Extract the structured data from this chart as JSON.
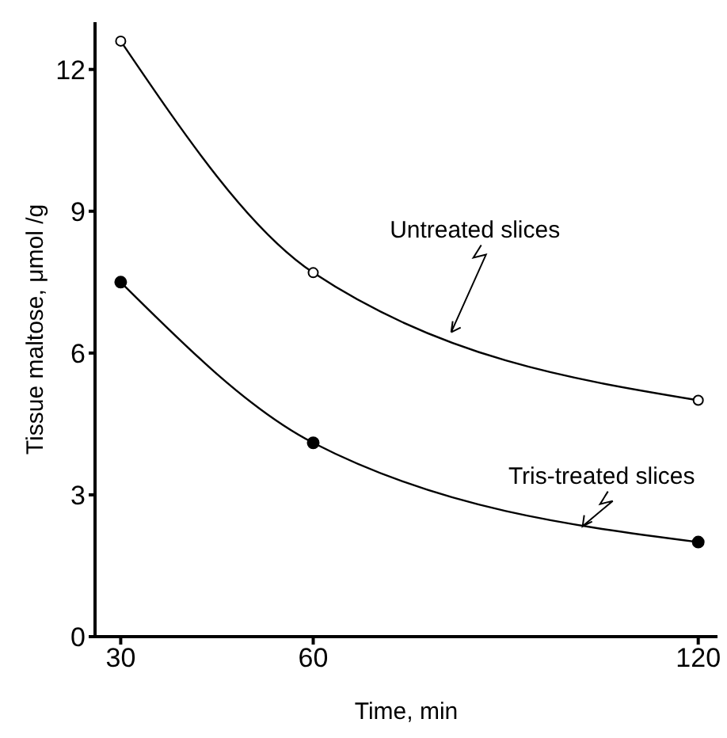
{
  "chart_data": {
    "type": "line",
    "xlabel": "Time, min",
    "ylabel": "Tissue maltose, μmol /g",
    "x": [
      30,
      60,
      120
    ],
    "series": [
      {
        "name": "Untreated slices",
        "color": "#000000",
        "values": [
          12.6,
          7.7,
          5.0
        ],
        "marker": "circle"
      },
      {
        "name": "Tris-treated slices",
        "color": "#000000",
        "values": [
          7.5,
          4.1,
          2.0
        ],
        "marker": "circle"
      }
    ],
    "xlim": [
      26,
      123
    ],
    "xticks": [
      30,
      60,
      120
    ],
    "ylim": [
      0,
      13
    ],
    "yticks": [
      0,
      3,
      6,
      9,
      12
    ],
    "grid": false,
    "legend": false,
    "line_style": "solid"
  }
}
